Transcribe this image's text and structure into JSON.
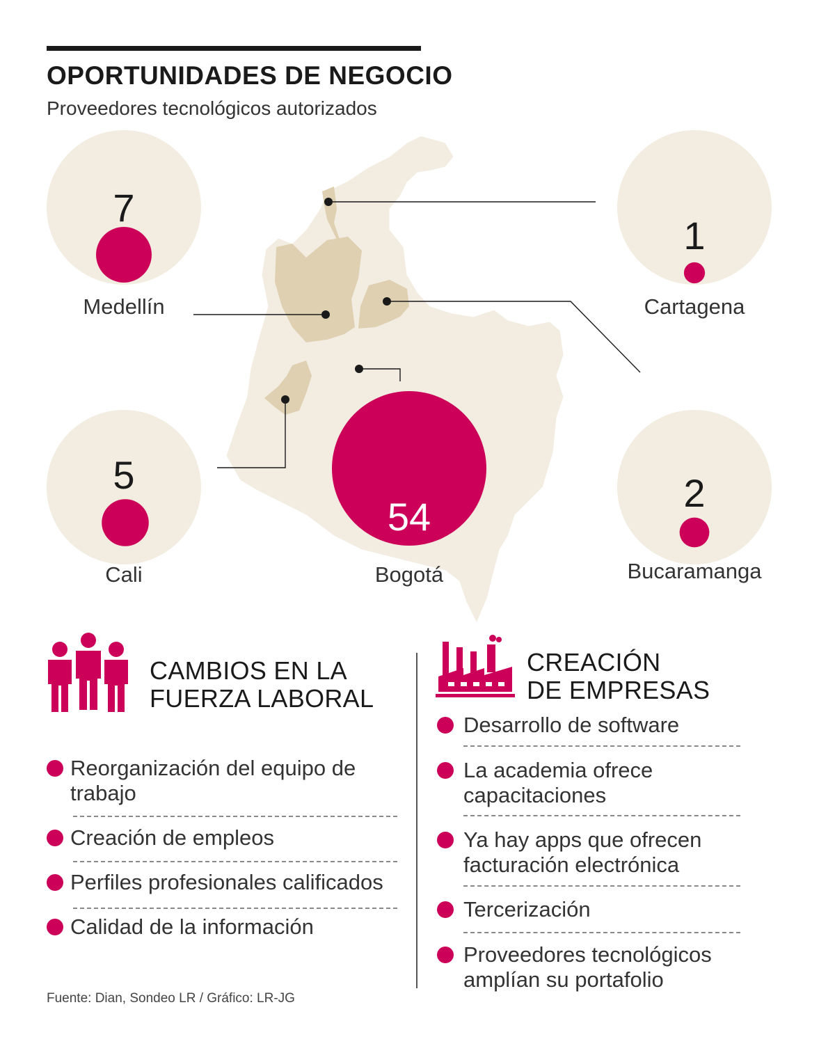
{
  "title": "OPORTUNIDADES DE NEGOCIO",
  "subtitle": "Proveedores tecnológicos autorizados",
  "chart_data": {
    "type": "bubble-map",
    "title": "OPORTUNIDADES DE NEGOCIO",
    "subtitle": "Proveedores tecnológicos autorizados",
    "categories": [
      "Medellín",
      "Cartagena",
      "Cali",
      "Bogotá",
      "Bucaramanga"
    ],
    "values": [
      7,
      1,
      5,
      54,
      2
    ],
    "colors": {
      "bubble": "#cc0058",
      "background": "#f2ece1",
      "map": "#f2ece1",
      "highlight": "#dfd0b2",
      "lines": "#1a1a1a"
    }
  },
  "sections": {
    "left": {
      "title_line1": "CAMBIOS EN LA",
      "title_line2": "FUERZA LABORAL",
      "icon": "people-icon",
      "items": [
        "Reorganización del equipo de trabajo",
        "Creación de empleos",
        "Perfiles profesionales calificados",
        "Calidad de la información"
      ]
    },
    "right": {
      "title_line1": "CREACIÓN",
      "title_line2": "DE EMPRESAS",
      "icon": "factory-icon",
      "items": [
        "Desarrollo de software",
        "La academia ofrece capacitaciones",
        "Ya hay apps que ofrecen facturación electrónica",
        "Tercerización",
        "Proveedores tecnológicos amplían su portafolio"
      ]
    }
  },
  "source": "Fuente: Dian, Sondeo LR  / Gráfico: LR-JG",
  "accent_color": "#cc0058"
}
